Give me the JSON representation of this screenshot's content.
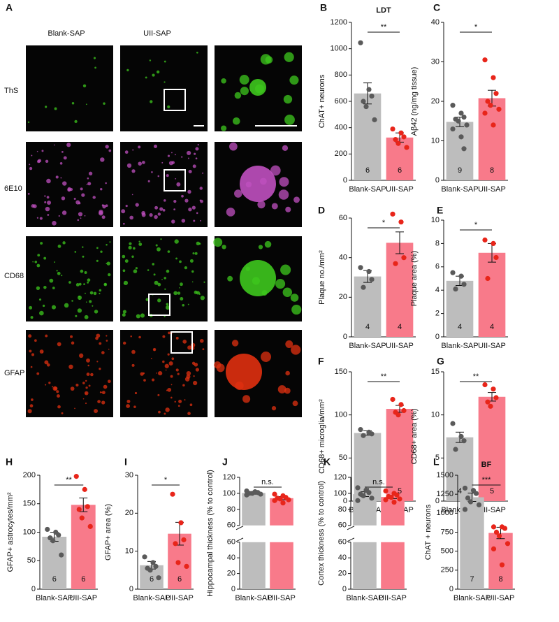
{
  "panel_a": {
    "panel": "A",
    "columns": [
      "Blank-SAP",
      "UII-SAP"
    ],
    "rows": [
      "ThS",
      "6E10",
      "CD68",
      "GFAP"
    ]
  },
  "chart_data": [
    {
      "type": "bar",
      "panel": "B",
      "title": "LDT",
      "ylabel": "ChAT+ neurons",
      "categories": [
        "Blank-SAP",
        "UII-SAP"
      ],
      "values": [
        660,
        325
      ],
      "errors": [
        80,
        35
      ],
      "n": [
        "6",
        "6"
      ],
      "points": [
        [
          1045,
          690,
          640,
          600,
          560,
          460
        ],
        [
          390,
          360,
          330,
          310,
          280,
          250
        ]
      ],
      "significance": "**",
      "colors": [
        "#bdbdbd",
        "#f87a8a"
      ],
      "point_colors": [
        "#5a5a5a",
        "#e8251a"
      ],
      "ylim": [
        0,
        1200
      ],
      "yticks": [
        0,
        200,
        400,
        600,
        800,
        1000,
        1200
      ]
    },
    {
      "type": "bar",
      "panel": "C",
      "ylabel": "Aβ42 (ng/mg tissue)",
      "categories": [
        "Blank-SAP",
        "UII-SAP"
      ],
      "values": [
        14.8,
        20.8
      ],
      "errors": [
        1.2,
        2.0
      ],
      "n": [
        "9",
        "8"
      ],
      "points": [
        [
          19,
          17,
          16,
          15.5,
          15,
          14,
          13,
          11,
          8
        ],
        [
          30.5,
          26,
          22,
          20,
          19,
          18,
          17,
          14
        ]
      ],
      "significance": "*",
      "colors": [
        "#bdbdbd",
        "#f87a8a"
      ],
      "point_colors": [
        "#5a5a5a",
        "#e8251a"
      ],
      "ylim": [
        0,
        40
      ],
      "yticks": [
        0,
        10,
        20,
        30,
        40
      ]
    },
    {
      "type": "bar",
      "panel": "D",
      "ylabel": "Plaque no./mm²",
      "categories": [
        "Blank-SAP",
        "UII-SAP"
      ],
      "values": [
        30.5,
        47.5
      ],
      "errors": [
        3,
        5.5
      ],
      "n": [
        "4",
        "4"
      ],
      "points": [
        [
          35,
          33,
          29,
          25
        ],
        [
          62,
          58,
          40,
          37
        ]
      ],
      "significance": "*",
      "colors": [
        "#bdbdbd",
        "#f87a8a"
      ],
      "point_colors": [
        "#5a5a5a",
        "#e8251a"
      ],
      "ylim": [
        0,
        60
      ],
      "yticks": [
        0,
        20,
        40,
        60
      ]
    },
    {
      "type": "bar",
      "panel": "E",
      "ylabel": "Plaque area (%)",
      "categories": [
        "Blank-SAP",
        "UII-SAP"
      ],
      "values": [
        4.8,
        7.2
      ],
      "errors": [
        0.4,
        0.8
      ],
      "n": [
        "4",
        "4"
      ],
      "points": [
        [
          5.5,
          5.2,
          4.5,
          4.1
        ],
        [
          8.3,
          8.0,
          6.8,
          5.0
        ]
      ],
      "significance": "*",
      "colors": [
        "#bdbdbd",
        "#f87a8a"
      ],
      "point_colors": [
        "#5a5a5a",
        "#e8251a"
      ],
      "ylim": [
        0,
        10
      ],
      "yticks": [
        0,
        2,
        4,
        6,
        8,
        10
      ]
    },
    {
      "type": "bar",
      "panel": "F",
      "ylabel": "CD68+ microglia/mm²",
      "categories": [
        "Blank-SAP",
        "UII-SAP"
      ],
      "values": [
        79,
        107
      ],
      "errors": [
        2.5,
        4
      ],
      "n": [
        "4",
        "5"
      ],
      "points": [
        [
          83,
          80,
          78,
          76
        ],
        [
          118,
          112,
          105,
          103,
          100
        ]
      ],
      "significance": "**",
      "colors": [
        "#bdbdbd",
        "#f87a8a"
      ],
      "point_colors": [
        "#5a5a5a",
        "#e8251a"
      ],
      "ylim": [
        0,
        150
      ],
      "yticks": [
        0,
        50,
        100,
        150
      ]
    },
    {
      "type": "bar",
      "panel": "G",
      "ylabel": "CD68+ area (%)",
      "categories": [
        "Blank-SAP",
        "UII-SAP"
      ],
      "values": [
        7.4,
        12.1
      ],
      "errors": [
        0.6,
        0.5
      ],
      "n": [
        "4",
        "5"
      ],
      "points": [
        [
          9,
          7.5,
          7,
          6
        ],
        [
          13.5,
          13,
          12,
          11.5,
          11
        ]
      ],
      "significance": "**",
      "colors": [
        "#bdbdbd",
        "#f87a8a"
      ],
      "point_colors": [
        "#5a5a5a",
        "#e8251a"
      ],
      "ylim": [
        0,
        15
      ],
      "yticks": [
        0,
        5,
        10,
        15
      ]
    },
    {
      "type": "bar",
      "panel": "H",
      "ylabel": "GFAP+ astrocytes/mm²",
      "categories": [
        "Blank-SAP",
        "UII-SAP"
      ],
      "values": [
        92,
        148
      ],
      "errors": [
        8,
        12
      ],
      "n": [
        "6",
        "6"
      ],
      "points": [
        [
          105,
          100,
          95,
          90,
          85,
          60
        ],
        [
          198,
          175,
          145,
          140,
          125,
          110
        ]
      ],
      "significance": "**",
      "colors": [
        "#bdbdbd",
        "#f87a8a"
      ],
      "point_colors": [
        "#5a5a5a",
        "#e8251a"
      ],
      "ylim": [
        0,
        200
      ],
      "yticks": [
        0,
        50,
        100,
        150,
        200
      ]
    },
    {
      "type": "bar",
      "panel": "I",
      "ylabel": "GFAP+ area (%)",
      "categories": [
        "Blank-SAP",
        "UII-SAP"
      ],
      "values": [
        6.3,
        14.6
      ],
      "errors": [
        1,
        3
      ],
      "n": [
        "6",
        "6"
      ],
      "points": [
        [
          8.5,
          7,
          6,
          5.5,
          5,
          3
        ],
        [
          25,
          17.5,
          13,
          12,
          7,
          6
        ]
      ],
      "significance": "*",
      "colors": [
        "#bdbdbd",
        "#f87a8a"
      ],
      "point_colors": [
        "#5a5a5a",
        "#e8251a"
      ],
      "ylim": [
        0,
        30
      ],
      "yticks": [
        0,
        10,
        20,
        30
      ]
    },
    {
      "type": "broken_bar",
      "panel": "J",
      "ylabel": "Hippocampal thickness (% to control)",
      "categories": [
        "Blank-SAP",
        "UII-SAP"
      ],
      "values": [
        100.5,
        94
      ],
      "errors": [
        1.5,
        2
      ],
      "points": [
        [
          103,
          102,
          101,
          100,
          100,
          99,
          98
        ],
        [
          99,
          97,
          95,
          94,
          93,
          92,
          91,
          88
        ]
      ],
      "significance": "n.s.",
      "colors": [
        "#bdbdbd",
        "#f87a8a"
      ],
      "point_colors": [
        "#5a5a5a",
        "#e8251a"
      ],
      "ylim": [
        60,
        120
      ],
      "yticks": [
        60,
        80,
        100,
        120
      ],
      "ylim_lower": [
        0,
        60
      ],
      "yticks_lower": [
        0,
        20,
        40,
        60
      ]
    },
    {
      "type": "broken_bar",
      "panel": "K",
      "ylabel": "Cortex thickness (% to control)",
      "categories": [
        "Blank-SAP",
        "UII-SAP"
      ],
      "values": [
        99,
        95.5
      ],
      "errors": [
        3,
        2
      ],
      "points": [
        [
          107,
          104,
          101,
          99,
          97,
          94,
          91
        ],
        [
          103,
          100,
          98,
          96,
          95,
          93,
          92,
          89
        ]
      ],
      "significance": "n.s.",
      "colors": [
        "#bdbdbd",
        "#f87a8a"
      ],
      "point_colors": [
        "#5a5a5a",
        "#e8251a"
      ],
      "ylim": [
        60,
        120
      ],
      "yticks": [
        60,
        80,
        100,
        120
      ],
      "ylim_lower": [
        0,
        60
      ],
      "yticks_lower": [
        0,
        20,
        40,
        60
      ]
    },
    {
      "type": "bar",
      "panel": "L",
      "title": "BF",
      "ylabel": "ChAT + neurons",
      "categories": [
        "Blank-SAP",
        "UII-SAP"
      ],
      "values": [
        1210,
        740
      ],
      "errors": [
        55,
        75
      ],
      "n": [
        "7",
        "8"
      ],
      "points": [
        [
          1330,
          1300,
          1260,
          1200,
          1150,
          1110,
          1050
        ],
        [
          820,
          820,
          800,
          750,
          700,
          600,
          530,
          320
        ]
      ],
      "significance": "***",
      "colors": [
        "#bdbdbd",
        "#f87a8a"
      ],
      "point_colors": [
        "#5a5a5a",
        "#e8251a"
      ],
      "ylim": [
        0,
        1500
      ],
      "yticks": [
        0,
        250,
        500,
        750,
        1000,
        1250,
        1500
      ]
    }
  ]
}
